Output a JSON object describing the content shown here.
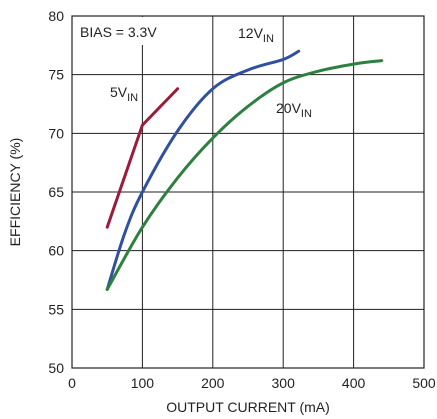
{
  "chart_data": {
    "type": "line",
    "xlabel": "OUTPUT CURRENT (mA)",
    "ylabel": "EFFICIENCY (%)",
    "xlim": [
      0,
      500
    ],
    "ylim": [
      50,
      80
    ],
    "xticks": [
      0,
      100,
      200,
      300,
      400,
      500
    ],
    "yticks": [
      50,
      55,
      60,
      65,
      70,
      75,
      80
    ],
    "x_tick_labels": [
      "0",
      "100",
      "200",
      "300",
      "400",
      "500"
    ],
    "y_tick_labels": [
      "50",
      "55",
      "60",
      "65",
      "70",
      "75",
      "80"
    ],
    "grid": true,
    "annotation": "BIAS = 3.3V",
    "series": [
      {
        "name_main": "5V",
        "name_sub": "IN",
        "color": "#9b1b3a",
        "x": [
          50,
          100,
          150
        ],
        "y": [
          62,
          70.7,
          73.8
        ]
      },
      {
        "name_main": "12V",
        "name_sub": "IN",
        "color": "#3050a0",
        "x": [
          50,
          75,
          100,
          150,
          200,
          250,
          300,
          322
        ],
        "y": [
          56.7,
          61.5,
          65,
          70.2,
          73.8,
          75.4,
          76.3,
          77
        ]
      },
      {
        "name_main": "20V",
        "name_sub": "IN",
        "color": "#2e8040",
        "x": [
          50,
          100,
          150,
          200,
          250,
          300,
          350,
          400,
          440
        ],
        "y": [
          56.7,
          62,
          66.2,
          69.6,
          72.3,
          74.3,
          75.3,
          75.9,
          76.2
        ]
      }
    ]
  }
}
